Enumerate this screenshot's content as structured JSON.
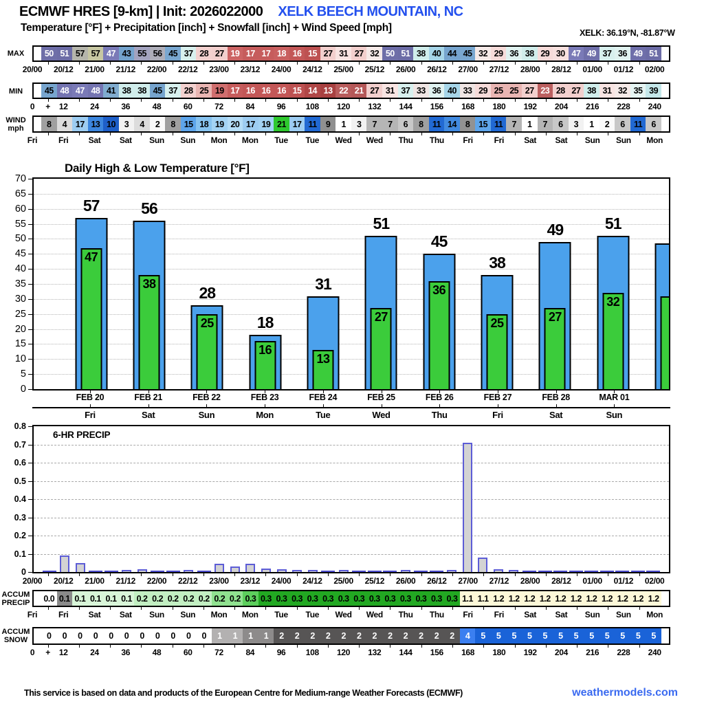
{
  "header": {
    "title": "ECMWF HRES [9-km] | Init: 2026022000",
    "station": "XELK BEECH MOUNTAIN, NC",
    "subtitle": "Temperature [°F] + Precipitation [inch] + Snowfall [inch] + Wind Speed [mph]",
    "coords": "XELK: 36.19°N, -81.87°W"
  },
  "strips": {
    "max": {
      "label": "MAX",
      "values": [
        "50",
        "51",
        "57",
        "57",
        "47",
        "43",
        "55",
        "56",
        "45",
        "37",
        "28",
        "27",
        "19",
        "17",
        "17",
        "18",
        "16",
        "15",
        "27",
        "31",
        "27",
        "32",
        "50",
        "51",
        "38",
        "40",
        "44",
        "45",
        "32",
        "29",
        "36",
        "38",
        "29",
        "30",
        "47",
        "49",
        "37",
        "36",
        "49",
        "51"
      ],
      "bg": [
        "#6e6ea8",
        "#6c6ca6",
        "#b5b5ab",
        "#c7c7a2",
        "#7a7ab7",
        "#74a3cd",
        "#a3a3bf",
        "#aeaeb9",
        "#79a7d0",
        "#d8f0ee",
        "#f3d1cf",
        "#f2cfcd",
        "#cc6464",
        "#c65c5c",
        "#c65c5c",
        "#c96060",
        "#c35757",
        "#bd5151",
        "#f2cfcd",
        "#f8e4e2",
        "#f2cfcd",
        "#f5eae8",
        "#6e6ea8",
        "#6c6ca6",
        "#d0edeb",
        "#a6d5e8",
        "#76a4ce",
        "#79a7d0",
        "#f5eae8",
        "#f6dbd9",
        "#e0f2f0",
        "#d0edeb",
        "#f6dbd9",
        "#f7e0de",
        "#7a7ab7",
        "#6f6faa",
        "#d8f0ee",
        "#e0f2f0",
        "#6f6faa",
        "#6c6ca6"
      ],
      "fg": "wwbbwbbbbbbbwwwwwwbbbbwwbbbbbbbbbbwwbbww"
    },
    "min": {
      "label": "MIN",
      "values": [
        "45",
        "48",
        "47",
        "48",
        "41",
        "38",
        "38",
        "45",
        "37",
        "28",
        "25",
        "19",
        "17",
        "16",
        "16",
        "16",
        "15",
        "14",
        "13",
        "22",
        "21",
        "27",
        "31",
        "37",
        "33",
        "36",
        "40",
        "33",
        "29",
        "25",
        "25",
        "27",
        "23",
        "28",
        "27",
        "38",
        "31",
        "32",
        "35",
        "39"
      ],
      "bg": [
        "#77a5ce",
        "#7474b1",
        "#7a7ab7",
        "#7474b1",
        "#80accf",
        "#d0edeb",
        "#d0edeb",
        "#76a4ce",
        "#d8f0ee",
        "#f3d1cf",
        "#e9b5b2",
        "#d06e6e",
        "#c65c5c",
        "#c35757",
        "#c35757",
        "#c35757",
        "#bd5151",
        "#b04747",
        "#a84040",
        "#b85c5c",
        "#b55858",
        "#f2cfcd",
        "#f8e4e2",
        "#d8f0ee",
        "#efe5e3",
        "#e0f2f0",
        "#a6d5e8",
        "#efe5e3",
        "#f6dbd9",
        "#e9b5b2",
        "#e9b5b2",
        "#f2cfcd",
        "#bb6060",
        "#f3d1cf",
        "#f2cfcd",
        "#d0edeb",
        "#f8e4e2",
        "#f5eae8",
        "#e5f4f2",
        "#c4e7e9"
      ],
      "fg": "bwwwbbbbbbbbwwwwwwwwwbbbbbbbbbbbwbbbbbbb"
    },
    "wind": {
      "label": "WIND",
      "label2": "mph",
      "values": [
        "8",
        "4",
        "17",
        "13",
        "10",
        "3",
        "4",
        "2",
        "8",
        "15",
        "18",
        "19",
        "20",
        "17",
        "19",
        "21",
        "17",
        "11",
        "9",
        "1",
        "3",
        "7",
        "7",
        "6",
        "8",
        "11",
        "14",
        "8",
        "15",
        "11",
        "7",
        "1",
        "7",
        "6",
        "3",
        "1",
        "2",
        "6",
        "11",
        "6"
      ],
      "bg": [
        "#a0a0a0",
        "#dcdcdc",
        "#9dcdf2",
        "#3c86de",
        "#1e5fc8",
        "#f2f2f2",
        "#dcdcdc",
        "#fafafa",
        "#a0a0a0",
        "#5ea5ea",
        "#87c3ef",
        "#a3d3f4",
        "#b5ddf7",
        "#9dcdf2",
        "#a3d3f4",
        "#2ec82e",
        "#9dcdf2",
        "#2169d3",
        "#909090",
        "#ffffff",
        "#f2f2f2",
        "#b5b5b5",
        "#b5b5b5",
        "#c8c8c8",
        "#a0a0a0",
        "#2169d3",
        "#418ae0",
        "#929292",
        "#5ea5ea",
        "#2169d3",
        "#b5b5b5",
        "#ffffff",
        "#b5b5b5",
        "#c8c8c8",
        "#f2f2f2",
        "#ffffff",
        "#fafafa",
        "#c8c8c8",
        "#2169d3",
        "#c8c8c8"
      ],
      "fg": "b"
    },
    "accum_precip": {
      "label": "ACCUM",
      "label2": "PRECIP",
      "values": [
        "0.0",
        "0.1",
        "0.1",
        "0.1",
        "0.1",
        "0.1",
        "0.2",
        "0.2",
        "0.2",
        "0.2",
        "0.2",
        "0.2",
        "0.2",
        "0.3",
        "0.3",
        "0.3",
        "0.3",
        "0.3",
        "0.3",
        "0.3",
        "0.3",
        "0.3",
        "0.3",
        "0.3",
        "0.3",
        "0.3",
        "0.3",
        "1.1",
        "1.1",
        "1.2",
        "1.2",
        "1.2",
        "1.2",
        "1.2",
        "1.2",
        "1.2",
        "1.2",
        "1.2",
        "1.2",
        "1.2"
      ],
      "bg": [
        "#ffffff",
        "#8a8a8a",
        "#d8f5d8",
        "#d8f5d8",
        "#d8f5d8",
        "#d8f5d8",
        "#c2efc2",
        "#c2efc2",
        "#c2efc2",
        "#c2efc2",
        "#c2efc2",
        "#90e290",
        "#90e290",
        "#5ccf5c",
        "#22a822",
        "#22a822",
        "#22a822",
        "#22a822",
        "#22a822",
        "#22a822",
        "#22a822",
        "#22a822",
        "#22a822",
        "#22a822",
        "#22a822",
        "#22a822",
        "#22a822",
        "#fdf8d8",
        "#fdf8d8",
        "#fdf8d8",
        "#fdf8d8",
        "#fdf8d8",
        "#fdf8d8",
        "#fdf8d8",
        "#fdf8d8",
        "#fdf8d8",
        "#fdf8d8",
        "#fdf8d8",
        "#fdf8d8",
        "#fdf8d8"
      ],
      "fg": "b"
    },
    "accum_snow": {
      "label": "ACCUM",
      "label2": "SNOW",
      "values": [
        "0",
        "0",
        "0",
        "0",
        "0",
        "0",
        "0",
        "0",
        "0",
        "0",
        "0",
        "1",
        "1",
        "1",
        "1",
        "2",
        "2",
        "2",
        "2",
        "2",
        "2",
        "2",
        "2",
        "2",
        "2",
        "2",
        "2",
        "4",
        "5",
        "5",
        "5",
        "5",
        "5",
        "5",
        "5",
        "5",
        "5",
        "5",
        "5",
        "5"
      ],
      "bg": [
        "#ffffff",
        "#ffffff",
        "#ffffff",
        "#ffffff",
        "#ffffff",
        "#ffffff",
        "#ffffff",
        "#ffffff",
        "#ffffff",
        "#ffffff",
        "#ffffff",
        "#b3b1b1",
        "#b3b1b1",
        "#8d8b8b",
        "#8d8b8b",
        "#575555",
        "#575555",
        "#575555",
        "#575555",
        "#575555",
        "#575555",
        "#575555",
        "#575555",
        "#575555",
        "#575555",
        "#575555",
        "#575555",
        "#3b7ff0",
        "#1a63d8",
        "#1a63d8",
        "#1a63d8",
        "#1a63d8",
        "#1a63d8",
        "#1a63d8",
        "#1a63d8",
        "#1a63d8",
        "#1a63d8",
        "#1a63d8",
        "#1a63d8",
        "#1a63d8"
      ],
      "fg": "bbbbbbbbbbbwwwwwwwwwwwwwwwwwwwwwwwwwwwww"
    }
  },
  "axis_labels": {
    "time12": [
      "20/00",
      "20/12",
      "21/00",
      "21/12",
      "22/00",
      "22/12",
      "23/00",
      "23/12",
      "24/00",
      "24/12",
      "25/00",
      "25/12",
      "26/00",
      "26/12",
      "27/00",
      "27/12",
      "28/00",
      "28/12",
      "01/00",
      "01/12",
      "02/00"
    ],
    "hours": [
      "0",
      "+",
      "12",
      "24",
      "36",
      "48",
      "60",
      "72",
      "84",
      "96",
      "108",
      "120",
      "132",
      "144",
      "156",
      "168",
      "180",
      "192",
      "204",
      "216",
      "228",
      "240"
    ],
    "days": [
      "Fri",
      "Fri",
      "Sat",
      "Sat",
      "Sun",
      "Sun",
      "Mon",
      "Mon",
      "Tue",
      "Tue",
      "Wed",
      "Wed",
      "Thu",
      "Thu",
      "Fri",
      "Fri",
      "Sat",
      "Sat",
      "Sun",
      "Sun",
      "Mon"
    ]
  },
  "chart_data": [
    {
      "type": "bar",
      "id": "daily-temp",
      "title": "Daily High & Low Temperature [°F]",
      "categories": [
        "FEB 20",
        "FEB 21",
        "FEB 22",
        "FEB 23",
        "FEB 24",
        "FEB 25",
        "FEB 26",
        "FEB 27",
        "FEB 28",
        "MAR 01"
      ],
      "day_names": [
        "Fri",
        "Sat",
        "Sun",
        "Mon",
        "Tue",
        "Wed",
        "Thu",
        "Fri",
        "Sat",
        "Sun"
      ],
      "series": [
        {
          "name": "High",
          "color": "#4ba1ec",
          "values": [
            57,
            56,
            28,
            18,
            31,
            51,
            45,
            38,
            49,
            51
          ]
        },
        {
          "name": "Low",
          "color": "#3bcc3b",
          "values": [
            47,
            38,
            25,
            16,
            13,
            27,
            36,
            25,
            27,
            32
          ]
        }
      ],
      "partial_last_bar": {
        "high": 48.5,
        "low": 31
      },
      "ylim": [
        0,
        70
      ],
      "ytick_step": 5,
      "grid": "dotted"
    },
    {
      "type": "bar",
      "id": "precip-6hr",
      "title": "6-HR PRECIP",
      "x_start_hour": 6,
      "x_step_hours": 6,
      "x_end_hour": 240,
      "values": [
        0,
        0.09,
        0.05,
        0,
        0,
        0.005,
        0.015,
        0,
        0,
        0.008,
        0,
        0.045,
        0.03,
        0.045,
        0.02,
        0.015,
        0.012,
        0.005,
        0,
        0.005,
        0,
        0,
        0,
        0.008,
        0,
        0,
        0.01,
        0.71,
        0.08,
        0.015,
        0.005,
        0,
        0,
        0,
        0,
        0,
        0,
        0,
        0,
        0
      ],
      "xtick_labels": [
        "20/00",
        "20/12",
        "21/00",
        "21/12",
        "22/00",
        "22/12",
        "23/00",
        "23/12",
        "24/00",
        "24/12",
        "25/00",
        "25/12",
        "26/00",
        "26/12",
        "27/00",
        "27/12",
        "28/00",
        "28/12",
        "01/00",
        "01/12",
        "02/00"
      ],
      "ylim": [
        0,
        0.8
      ],
      "ytick_step": 0.1,
      "bar_fill": "#d3d3d3",
      "bar_stroke": "#5c5cd6",
      "grid": "dashed"
    }
  ],
  "footer": {
    "disclaimer": "This service is based on data and products of the European Centre for Medium-range Weather Forecasts (ECMWF)",
    "brand": "weathermodels.com"
  }
}
